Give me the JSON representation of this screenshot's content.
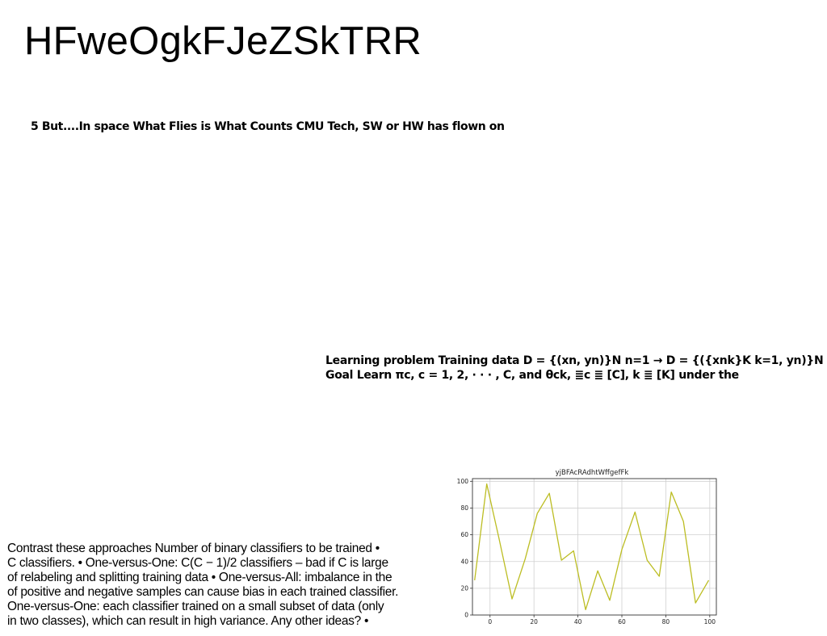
{
  "title": "HFweOgkFJeZSkTRR",
  "headline": "5 But....In space What Flies is What Counts CMU Tech, SW or HW has flown on",
  "learning_lines": [
    "Learning problem Training data D = {(xn, yn)}N n=1 → D = {({xnk}K k=1, yn)}N",
    "Goal Learn πc, c = 1, 2, · · · , C, and θck, ≣c ≣ [C], k ≣ [K] under the"
  ],
  "contrast_lines": [
    "Contrast these approaches Number of binary classifiers to be trained •",
    "C classifiers. • One-versus-One: C(C − 1)/2 classifiers – bad if C is large",
    "of relabeling and splitting training data • One-versus-All: imbalance in the",
    "of positive and negative samples can cause bias in each trained classifier.",
    "One-versus-One: each classifier trained on a small subset of data (only",
    "in two classes), which can result in high variance. Any other ideas? •"
  ],
  "chart_data": {
    "type": "line",
    "title": "yjBFAcRAdhtWffgefFk",
    "xlabel": "",
    "ylabel": "",
    "xlim": [
      -8,
      103
    ],
    "ylim": [
      0,
      102
    ],
    "x_ticks": [
      0,
      20,
      40,
      60,
      80,
      100
    ],
    "y_ticks": [
      0,
      20,
      40,
      60,
      80,
      100
    ],
    "grid": true,
    "series": [
      {
        "color": "#bcbd22",
        "x": [
          -7,
          -1.5,
          4,
          10,
          16,
          21.5,
          27,
          32.5,
          38,
          43.5,
          49,
          54.5,
          60,
          66,
          71.5,
          77,
          82.5,
          88,
          93.5,
          99.5
        ],
        "y": [
          26,
          98,
          58,
          12,
          42,
          76,
          91,
          41,
          48,
          4,
          33,
          11,
          49,
          77,
          41,
          29,
          92,
          70,
          9,
          26
        ]
      }
    ]
  }
}
